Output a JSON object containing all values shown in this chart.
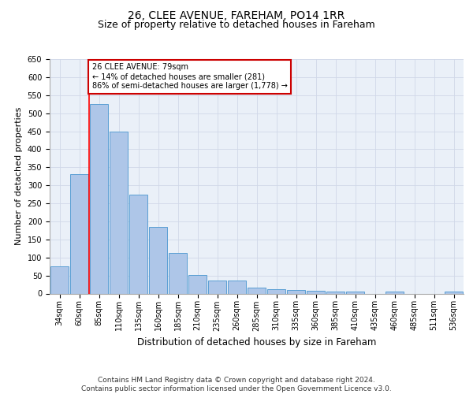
{
  "title1": "26, CLEE AVENUE, FAREHAM, PO14 1RR",
  "title2": "Size of property relative to detached houses in Fareham",
  "xlabel": "Distribution of detached houses by size in Fareham",
  "ylabel": "Number of detached properties",
  "categories": [
    "34sqm",
    "60sqm",
    "85sqm",
    "110sqm",
    "135sqm",
    "160sqm",
    "185sqm",
    "210sqm",
    "235sqm",
    "260sqm",
    "285sqm",
    "310sqm",
    "335sqm",
    "360sqm",
    "385sqm",
    "410sqm",
    "435sqm",
    "460sqm",
    "485sqm",
    "511sqm",
    "536sqm"
  ],
  "values": [
    75,
    330,
    525,
    450,
    275,
    185,
    113,
    52,
    35,
    37,
    17,
    13,
    10,
    8,
    5,
    5,
    0,
    5,
    0,
    0,
    5
  ],
  "bar_color": "#aec6e8",
  "bar_edge_color": "#5a9fd4",
  "red_line_index": 1.5,
  "annotation_text": "26 CLEE AVENUE: 79sqm\n← 14% of detached houses are smaller (281)\n86% of semi-detached houses are larger (1,778) →",
  "annotation_box_color": "#ffffff",
  "annotation_box_edge_color": "#cc0000",
  "ylim": [
    0,
    650
  ],
  "yticks": [
    0,
    50,
    100,
    150,
    200,
    250,
    300,
    350,
    400,
    450,
    500,
    550,
    600,
    650
  ],
  "footer": "Contains HM Land Registry data © Crown copyright and database right 2024.\nContains public sector information licensed under the Open Government Licence v3.0.",
  "grid_color": "#d0d8e8",
  "background_color": "#eaf0f8",
  "title1_fontsize": 10,
  "title2_fontsize": 9,
  "xlabel_fontsize": 8.5,
  "ylabel_fontsize": 8,
  "footer_fontsize": 6.5,
  "tick_fontsize": 7
}
